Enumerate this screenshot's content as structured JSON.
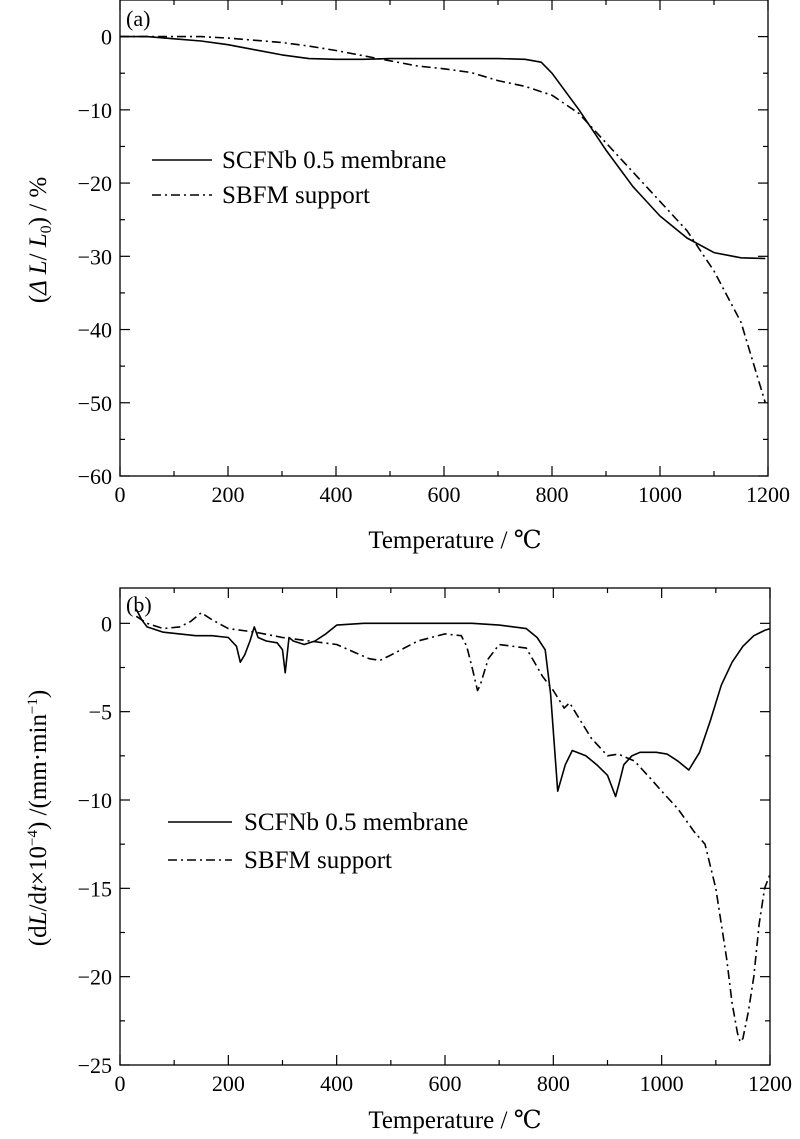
{
  "chart_data": [
    {
      "type": "line",
      "panel_label": "(a)",
      "xlabel": "Temperature / ℃",
      "ylabel_parts": {
        "open": "(",
        "delta_l": "Δ L",
        "slash": "/ ",
        "l0": "L",
        "sub0": "0",
        "close": ") / %"
      },
      "xlim": [
        0,
        1200
      ],
      "ylim": [
        -60,
        5
      ],
      "x_ticks": [
        "0",
        "200",
        "400",
        "600",
        "800",
        "1000",
        "1200"
      ],
      "y_ticks": [
        "0",
        "−10",
        "−20",
        "−30",
        "−40",
        "−50",
        "−60"
      ],
      "legend_position": "upper-left",
      "series": [
        {
          "name": "SCFNb 0.5 membrane",
          "style": "solid",
          "x": [
            0,
            50,
            100,
            150,
            200,
            250,
            300,
            350,
            400,
            450,
            500,
            550,
            600,
            650,
            700,
            750,
            780,
            800,
            850,
            900,
            950,
            1000,
            1050,
            1100,
            1150,
            1195
          ],
          "y": [
            0,
            0,
            -0.3,
            -0.6,
            -1.1,
            -1.8,
            -2.5,
            -3.0,
            -3.1,
            -3.1,
            -3.0,
            -3.0,
            -3.0,
            -3.0,
            -3.0,
            -3.1,
            -3.5,
            -5.0,
            -10.0,
            -15.5,
            -20.5,
            -24.5,
            -27.5,
            -29.5,
            -30.2,
            -30.3
          ]
        },
        {
          "name": "SBFM support",
          "style": "dashdot",
          "x": [
            0,
            50,
            100,
            150,
            200,
            250,
            300,
            350,
            400,
            450,
            500,
            550,
            600,
            650,
            700,
            750,
            800,
            850,
            900,
            950,
            1000,
            1050,
            1100,
            1150,
            1195
          ],
          "y": [
            0,
            0,
            0,
            0,
            -0.2,
            -0.5,
            -0.8,
            -1.3,
            -1.9,
            -2.6,
            -3.3,
            -4.0,
            -4.4,
            -4.9,
            -6.0,
            -6.8,
            -8.0,
            -10.5,
            -14.5,
            -18.5,
            -22.5,
            -26.5,
            -32.0,
            -39.0,
            -50.0
          ]
        }
      ]
    },
    {
      "type": "line",
      "panel_label": "(b)",
      "xlabel": "Temperature / ℃",
      "ylabel_parts": {
        "open": "(d",
        "l": "L",
        "mid": "/d",
        "t": "t",
        "times": "×10",
        "exp": "−4",
        "close": ") /(mm·min",
        "exp2": "−1",
        "end": ")"
      },
      "xlim": [
        0,
        1200
      ],
      "ylim": [
        -25,
        2
      ],
      "x_ticks": [
        "0",
        "200",
        "400",
        "600",
        "800",
        "1000",
        "1200"
      ],
      "y_ticks": [
        "0",
        "−5",
        "−10",
        "−15",
        "−20",
        "−25"
      ],
      "legend_position": "lower-left",
      "series": [
        {
          "name": "SCFNb 0.5 membrane",
          "style": "solid",
          "x": [
            30,
            40,
            50,
            80,
            110,
            140,
            170,
            200,
            215,
            222,
            230,
            240,
            248,
            255,
            270,
            290,
            300,
            305,
            312,
            320,
            340,
            360,
            380,
            400,
            450,
            500,
            550,
            600,
            650,
            700,
            750,
            770,
            785,
            795,
            808,
            822,
            835,
            860,
            880,
            900,
            915,
            922,
            930,
            945,
            960,
            990,
            1010,
            1030,
            1050,
            1070,
            1090,
            1110,
            1130,
            1150,
            1170,
            1190,
            1200
          ],
          "y": [
            0.8,
            0.2,
            -0.2,
            -0.5,
            -0.6,
            -0.7,
            -0.7,
            -0.8,
            -1.3,
            -2.2,
            -1.8,
            -1.0,
            -0.2,
            -0.8,
            -1.0,
            -1.1,
            -1.5,
            -2.8,
            -0.8,
            -1.0,
            -1.2,
            -1.0,
            -0.6,
            -0.1,
            0,
            0,
            0,
            0,
            0,
            -0.1,
            -0.3,
            -0.8,
            -1.5,
            -4.0,
            -9.5,
            -8.0,
            -7.2,
            -7.5,
            -8.0,
            -8.6,
            -9.8,
            -9.0,
            -8.0,
            -7.5,
            -7.3,
            -7.3,
            -7.4,
            -7.8,
            -8.3,
            -7.3,
            -5.5,
            -3.5,
            -2.2,
            -1.3,
            -0.7,
            -0.4,
            -0.3
          ]
        },
        {
          "name": "SBFM support",
          "style": "dashdot",
          "x": [
            30,
            50,
            80,
            110,
            130,
            150,
            170,
            200,
            250,
            300,
            350,
            400,
            430,
            460,
            480,
            500,
            550,
            600,
            630,
            640,
            650,
            660,
            665,
            680,
            700,
            750,
            780,
            800,
            820,
            830,
            850,
            870,
            900,
            920,
            950,
            980,
            1000,
            1030,
            1060,
            1080,
            1100,
            1120,
            1130,
            1140,
            1145,
            1150,
            1160,
            1170,
            1180,
            1190,
            1200
          ],
          "y": [
            0.4,
            0,
            -0.3,
            -0.2,
            0.1,
            0.6,
            0.2,
            -0.3,
            -0.5,
            -0.8,
            -1.0,
            -1.2,
            -1.6,
            -2.0,
            -2.1,
            -1.8,
            -1.0,
            -0.6,
            -0.7,
            -1.3,
            -2.5,
            -3.8,
            -3.5,
            -2.0,
            -1.2,
            -1.4,
            -3.0,
            -3.8,
            -4.8,
            -4.5,
            -5.5,
            -6.5,
            -7.5,
            -7.4,
            -7.8,
            -8.8,
            -9.5,
            -10.5,
            -11.8,
            -12.5,
            -15.0,
            -19.0,
            -21.5,
            -23.2,
            -23.7,
            -23.5,
            -22.0,
            -20.0,
            -17.0,
            -15.0,
            -14.2
          ]
        }
      ]
    }
  ]
}
